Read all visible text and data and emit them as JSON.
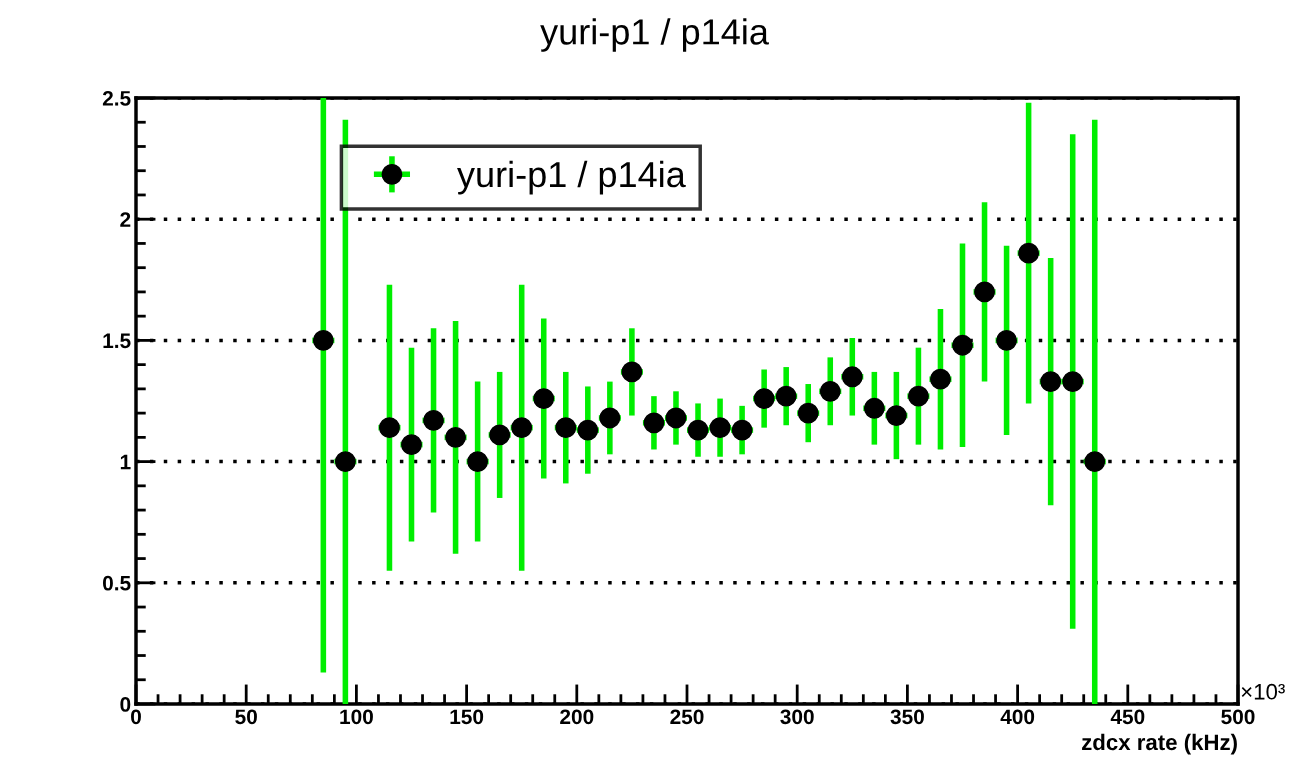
{
  "chart_data": {
    "type": "scatter",
    "title": "yuri-p1 / p14ia",
    "xlabel": "zdcx rate (kHz)",
    "x": [
      85,
      95,
      115,
      125,
      135,
      145,
      155,
      165,
      175,
      185,
      195,
      205,
      215,
      225,
      235,
      245,
      255,
      265,
      275,
      285,
      295,
      305,
      315,
      325,
      335,
      345,
      355,
      365,
      375,
      385,
      395,
      405,
      415,
      425,
      435
    ],
    "series": [
      {
        "name": "yuri-p1 / p14ia",
        "color": "#000000",
        "values": [
          1.5,
          1.0,
          1.14,
          1.07,
          1.17,
          1.1,
          1.0,
          1.11,
          1.14,
          1.26,
          1.14,
          1.13,
          1.18,
          1.37,
          1.16,
          1.18,
          1.13,
          1.14,
          1.13,
          1.26,
          1.27,
          1.2,
          1.29,
          1.35,
          1.22,
          1.19,
          1.27,
          1.34,
          1.48,
          1.7,
          1.5,
          1.86,
          1.33,
          1.33,
          1.0
        ],
        "errors": [
          [
            0.13,
            2.5
          ],
          [
            0,
            2.41
          ],
          0.59,
          0.4,
          0.38,
          0.48,
          0.33,
          0.26,
          0.59,
          0.33,
          0.23,
          0.18,
          0.15,
          0.18,
          0.11,
          0.11,
          0.11,
          0.12,
          0.1,
          0.12,
          0.12,
          0.12,
          0.14,
          0.16,
          0.15,
          0.18,
          0.2,
          0.29,
          0.42,
          0.37,
          0.39,
          0.62,
          0.51,
          1.02,
          [
            0,
            2.41
          ]
        ],
        "xerrors": [
          5,
          5,
          5,
          5,
          5,
          5,
          5,
          5,
          5,
          5,
          5,
          5,
          5,
          5,
          5,
          5,
          5,
          5,
          5,
          5,
          5,
          5,
          5,
          5,
          5,
          5,
          5,
          5,
          5,
          5,
          5,
          5,
          5,
          5,
          5
        ]
      }
    ],
    "xlim": [
      0,
      500
    ],
    "xticks": [
      0,
      50,
      100,
      150,
      200,
      250,
      300,
      350,
      400,
      450,
      500
    ],
    "ylim": [
      0,
      2.5
    ],
    "yticks": [
      0,
      {
        "value": 0.5,
        "label": "0.5"
      },
      1,
      {
        "value": 1.5,
        "label": "1.5"
      },
      2,
      {
        "value": 2.5,
        "label": "2.5"
      }
    ],
    "annotations": [
      "×10³"
    ],
    "grid": "y",
    "legend": "top left",
    "marker": "circle"
  }
}
